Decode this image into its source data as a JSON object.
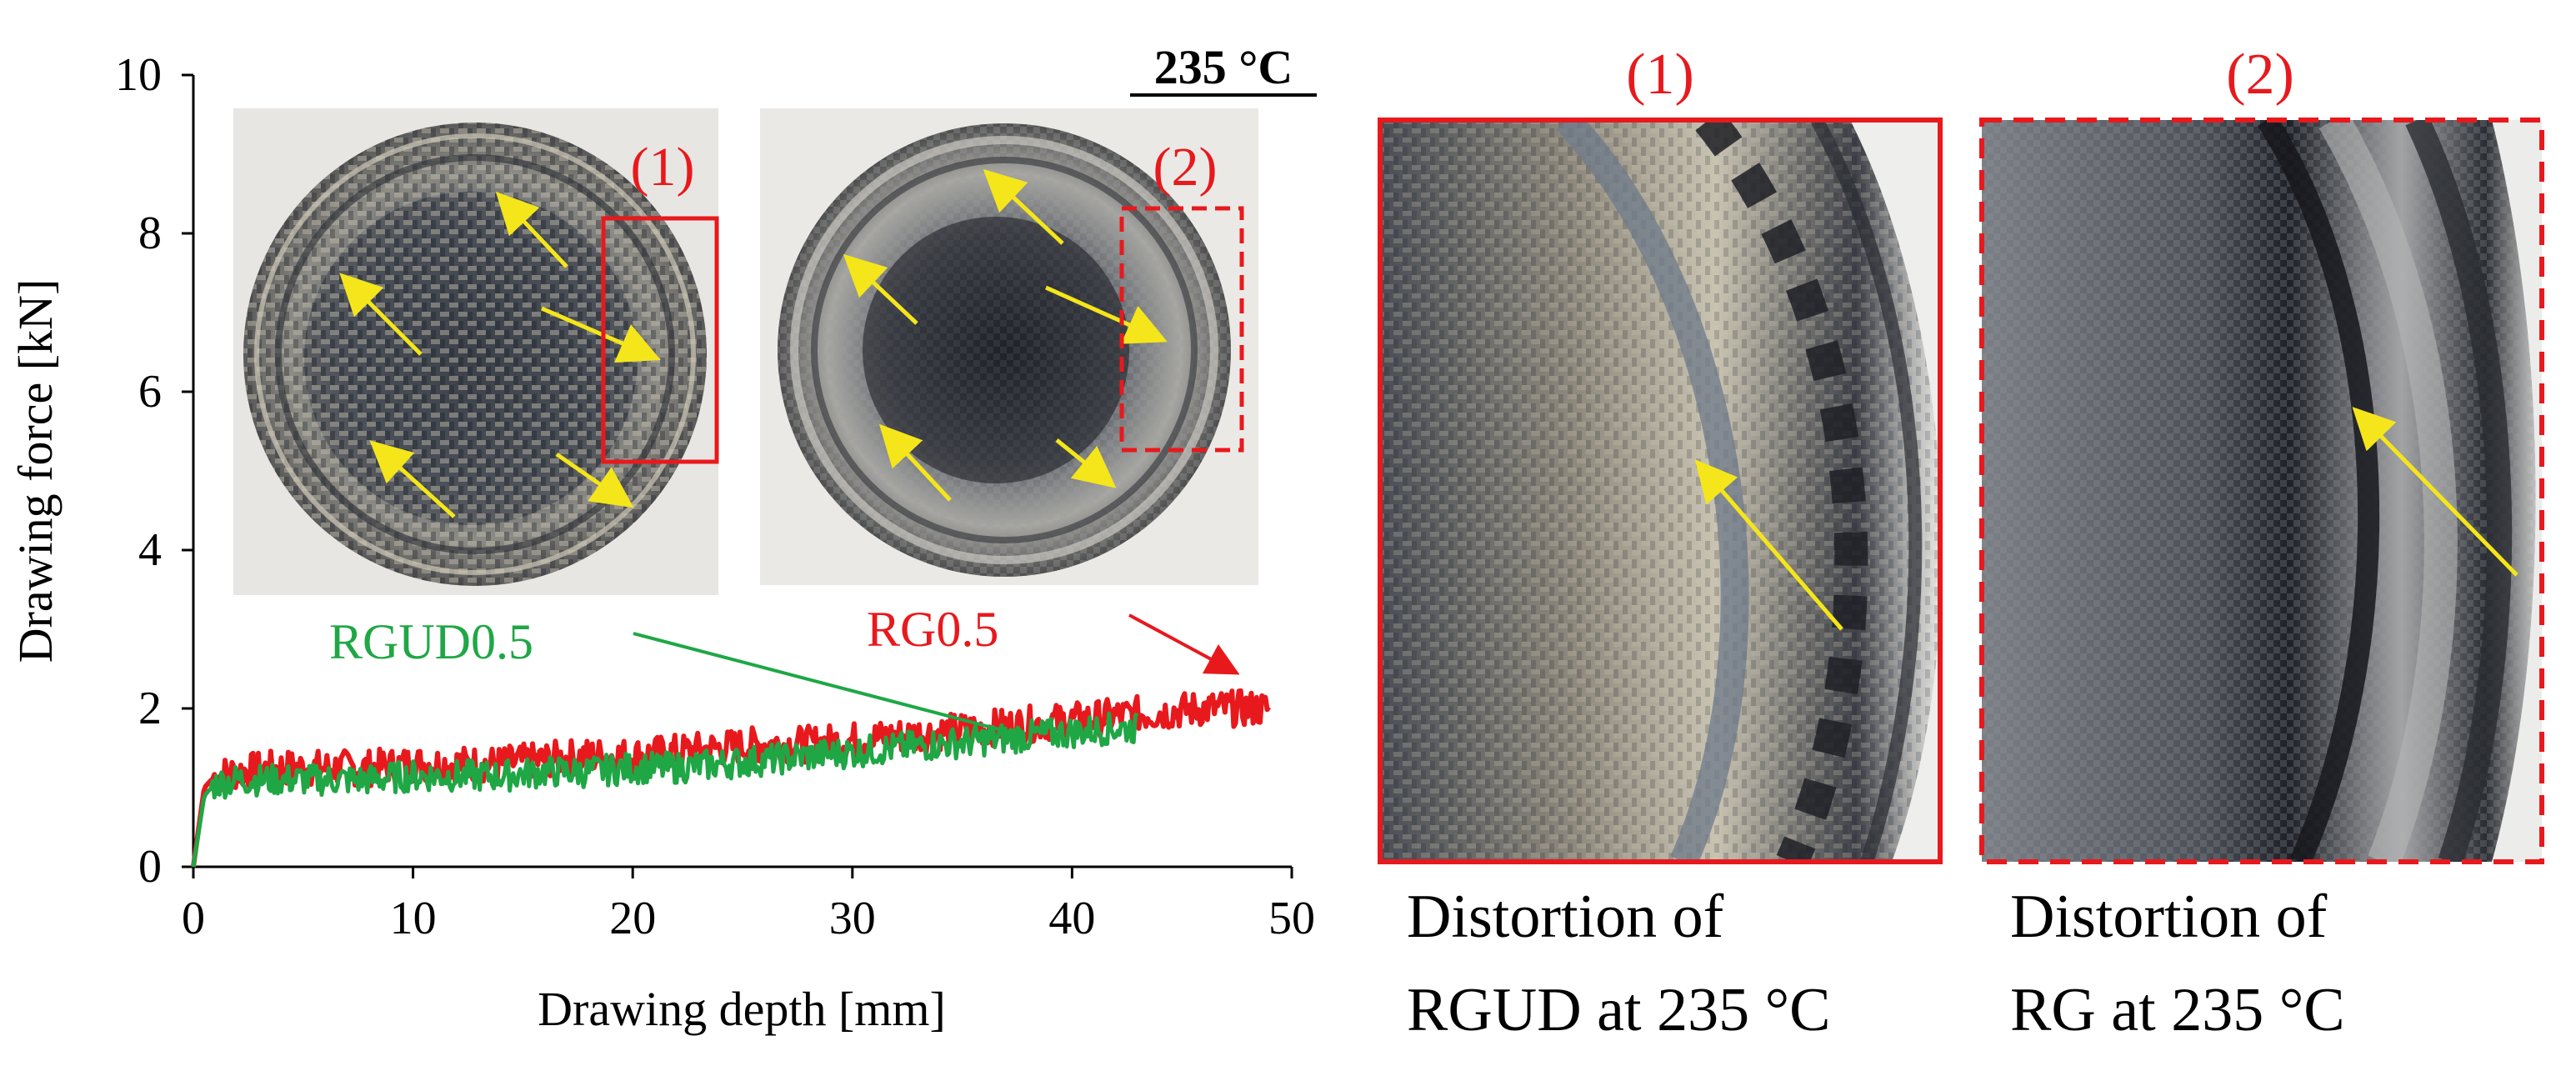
{
  "chart_data": {
    "type": "line",
    "title": "235 °C",
    "xlabel": "Drawing depth [mm]",
    "ylabel": "Drawing force [kN]",
    "xlim": [
      0,
      50
    ],
    "ylim": [
      0,
      10
    ],
    "xticks": [
      0,
      10,
      20,
      30,
      40,
      50
    ],
    "yticks": [
      0,
      2,
      4,
      6,
      8,
      10
    ],
    "grid": false,
    "series": [
      {
        "name": "RG0.5",
        "color": "#e8191d",
        "x": [
          0,
          0.5,
          1,
          2,
          4,
          6,
          8,
          10,
          12,
          14,
          16,
          18,
          20,
          22,
          24,
          26,
          28,
          30,
          32,
          34,
          36,
          38,
          40,
          42,
          44,
          46,
          48,
          49
        ],
        "y": [
          0,
          1.0,
          1.15,
          1.2,
          1.25,
          1.25,
          1.25,
          1.3,
          1.3,
          1.3,
          1.35,
          1.4,
          1.4,
          1.45,
          1.5,
          1.55,
          1.55,
          1.6,
          1.65,
          1.7,
          1.75,
          1.8,
          1.85,
          1.9,
          1.95,
          2.0,
          2.0,
          2.0
        ],
        "noise": 0.23
      },
      {
        "name": "RGUD0.5",
        "color": "#1fa745",
        "x": [
          0,
          0.5,
          1,
          2,
          4,
          6,
          8,
          10,
          12,
          14,
          16,
          18,
          20,
          22,
          24,
          26,
          28,
          30,
          32,
          34,
          36,
          38,
          40,
          42,
          43
        ],
        "y": [
          0,
          0.9,
          1.05,
          1.1,
          1.1,
          1.1,
          1.1,
          1.15,
          1.15,
          1.15,
          1.2,
          1.2,
          1.25,
          1.25,
          1.3,
          1.35,
          1.4,
          1.45,
          1.5,
          1.55,
          1.6,
          1.65,
          1.7,
          1.75,
          1.75
        ],
        "noise": 0.2
      }
    ],
    "annotations": [
      {
        "label": "RGUD0.5",
        "color": "#1fa745"
      },
      {
        "label": "RG0.5",
        "color": "#e8191d"
      }
    ]
  },
  "insets": [
    {
      "label": "(1)",
      "desc": "RGUD formed cup"
    },
    {
      "label": "(2)",
      "desc": "RG formed cup"
    }
  ],
  "panels": [
    {
      "label": "(1)",
      "caption_line1": "Distortion of",
      "caption_line2": "RGUD at 235 °C"
    },
    {
      "label": "(2)",
      "caption_line1": "Distortion of",
      "caption_line2": "RG at 235 °C"
    }
  ],
  "colors": {
    "red": "#e8191d",
    "green": "#1fa745",
    "yellow": "#f4e61a",
    "axis": "#000000"
  }
}
